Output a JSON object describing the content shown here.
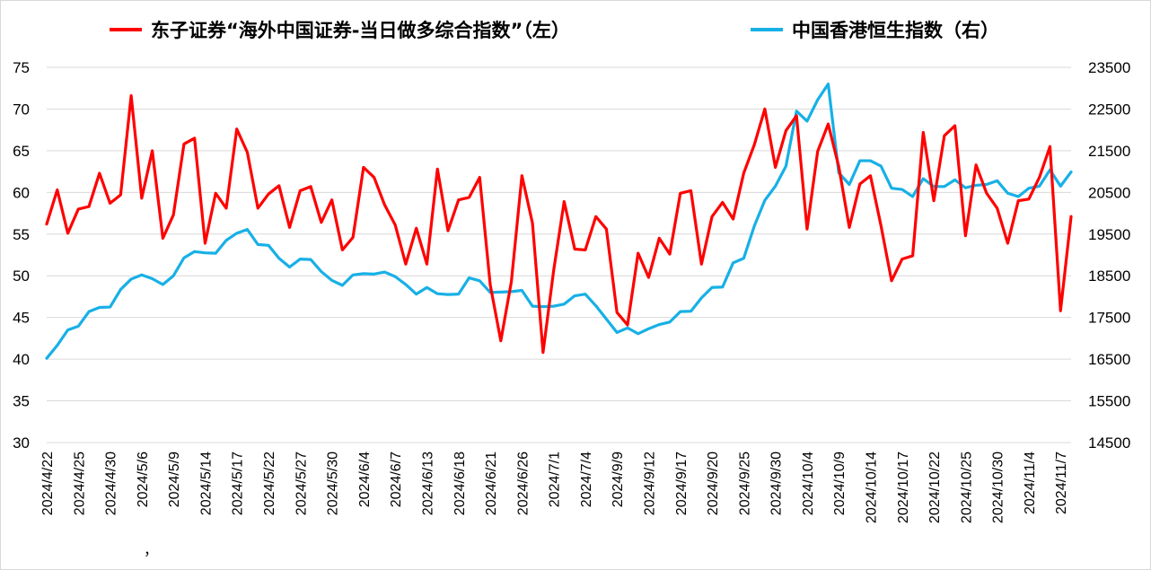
{
  "chart_data": {
    "type": "line",
    "legend_position": "top",
    "grid": "horizontal",
    "series": [
      {
        "name": "东子证券“海外中国证券-当日做多综合指数”（左）",
        "axis": "left",
        "color": "#ff0000",
        "values": [
          56.2,
          60.3,
          55.1,
          58.0,
          58.3,
          62.3,
          58.7,
          59.7,
          71.6,
          59.3,
          65.0,
          54.5,
          57.3,
          65.8,
          66.5,
          53.9,
          59.9,
          58.1,
          67.6,
          64.8,
          58.1,
          59.8,
          60.8,
          55.8,
          60.2,
          60.7,
          56.4,
          59.1,
          53.1,
          54.6,
          63.0,
          61.8,
          58.5,
          56.1,
          51.4,
          55.7,
          51.4,
          62.8,
          55.4,
          59.1,
          59.4,
          61.8,
          48.9,
          42.2,
          49.3,
          62.0,
          56.3,
          40.8,
          50.6,
          58.9,
          53.2,
          53.1,
          57.1,
          55.6,
          45.6,
          44.1,
          52.7,
          49.8,
          54.5,
          52.6,
          59.9,
          60.2,
          51.4,
          57.1,
          58.8,
          56.8,
          62.3,
          65.7,
          70.0,
          63.0,
          67.4,
          69.2,
          55.6,
          64.9,
          68.2,
          63.1,
          55.8,
          61.0,
          62.0,
          56.0,
          49.4,
          52.0,
          52.4,
          67.2,
          59.0,
          66.8,
          68.0,
          54.8,
          63.3,
          59.9,
          58.1,
          53.9,
          59.0,
          59.2,
          61.8,
          65.5,
          45.8,
          57.1
        ]
      },
      {
        "name": "中国香港恒生指数（右）",
        "axis": "right",
        "color": "#17b0e6",
        "values": [
          16520,
          16830,
          17200,
          17290,
          17640,
          17740,
          17750,
          18170,
          18420,
          18520,
          18430,
          18290,
          18500,
          18930,
          19080,
          19050,
          19040,
          19350,
          19520,
          19610,
          19250,
          19230,
          18920,
          18710,
          18900,
          18890,
          18600,
          18390,
          18270,
          18520,
          18550,
          18540,
          18590,
          18480,
          18290,
          18060,
          18220,
          18070,
          18050,
          18060,
          18450,
          18380,
          18100,
          18110,
          18120,
          18150,
          17770,
          17760,
          17770,
          17820,
          18020,
          18060,
          17780,
          17460,
          17140,
          17250,
          17110,
          17230,
          17330,
          17390,
          17640,
          17650,
          17970,
          18220,
          18230,
          18810,
          18920,
          19690,
          20310,
          20650,
          21130,
          22450,
          22210,
          22720,
          23100,
          20970,
          20690,
          21260,
          21260,
          21130,
          20600,
          20570,
          20400,
          20830,
          20640,
          20640,
          20800,
          20610,
          20670,
          20690,
          20780,
          20480,
          20400,
          20600,
          20650,
          21040,
          20650,
          20990
        ]
      }
    ],
    "x_tick_labels": [
      "2024/4/22",
      "2024/4/25",
      "2024/4/30",
      "2024/5/6",
      "2024/5/9",
      "2024/5/14",
      "2024/5/17",
      "2024/5/22",
      "2024/5/27",
      "2024/5/30",
      "2024/6/4",
      "2024/6/7",
      "2024/6/13",
      "2024/6/18",
      "2024/6/21",
      "2024/6/26",
      "2024/7/1",
      "2024/7/4",
      "2024/9/9",
      "2024/9/12",
      "2024/9/17",
      "2024/9/20",
      "2024/9/25",
      "2024/9/30",
      "2024/10/4",
      "2024/10/9",
      "2024/10/14",
      "2024/10/17",
      "2024/10/22",
      "2024/10/25",
      "2024/10/30",
      "2024/11/4",
      "2024/11/7"
    ],
    "left_axis": {
      "min": 30,
      "max": 75,
      "step": 5,
      "labels": [
        "30",
        "35",
        "40",
        "45",
        "50",
        "55",
        "60",
        "65",
        "70",
        "75"
      ]
    },
    "right_axis": {
      "min": 14500,
      "max": 23500,
      "step": 1000,
      "labels": [
        "14500",
        "15500",
        "16500",
        "17500",
        "18500",
        "19500",
        "20500",
        "21500",
        "22500",
        "23500"
      ]
    },
    "footnote": "，"
  }
}
